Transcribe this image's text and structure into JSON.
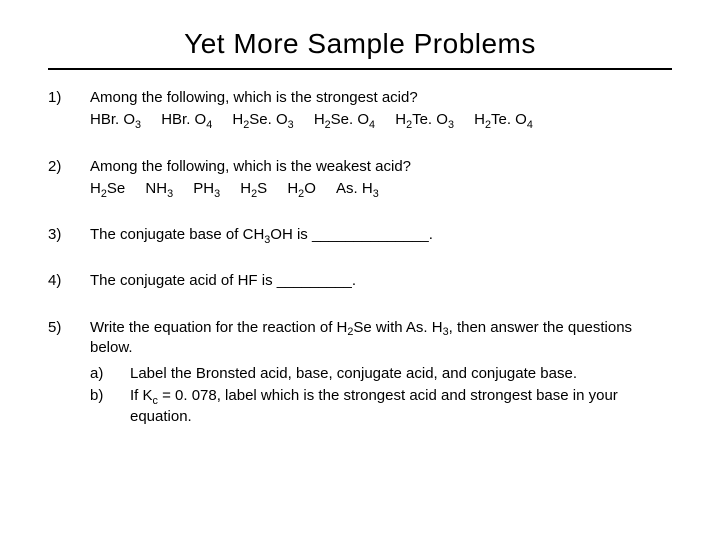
{
  "title": "Yet More Sample Problems",
  "problems": {
    "p1": {
      "num": "1)",
      "q": "Among the following, which is the strongest acid?",
      "opts": [
        "HBr. O",
        "HBr. O",
        "H",
        "Se. O",
        "H",
        "Se. O",
        "H",
        "Te. O",
        "H",
        "Te. O"
      ]
    },
    "p2": {
      "num": "2)",
      "q": "Among the following, which is the weakest acid?"
    },
    "p3": {
      "num": "3)",
      "q_pre": "The conjugate base of CH",
      "q_post": "OH is ______________."
    },
    "p4": {
      "num": "4)",
      "q": "The conjugate acid of HF is _________."
    },
    "p5": {
      "num": "5)",
      "q_pre": "Write the equation for the reaction of H",
      "q_mid": "Se with As. H",
      "q_post": ", then answer the questions below.",
      "a_label": "a)",
      "a_text": "Label the Bronsted acid, base, conjugate acid, and conjugate base.",
      "b_label": "b)",
      "b_pre": "If K",
      "b_post": " = 0. 078, label which is the strongest acid and strongest base in your equation."
    }
  },
  "style": {
    "title_fontsize": 28,
    "body_fontsize": 15,
    "text_color": "#000000",
    "background_color": "#ffffff",
    "rule_color": "#000000"
  }
}
